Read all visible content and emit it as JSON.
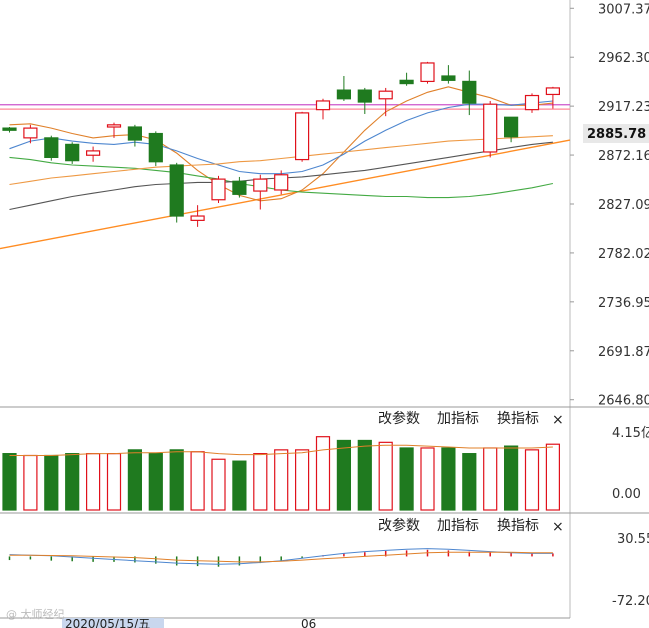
{
  "chart_data": {
    "type": "candlestick",
    "y_ticks": [
      "3007.37",
      "2962.30",
      "2917.23",
      "2872.16",
      "2827.09",
      "2782.02",
      "2736.95",
      "2691.87",
      "2646.80"
    ],
    "y_tick_values": [
      3007.37,
      2962.3,
      2917.23,
      2872.16,
      2827.09,
      2782.02,
      2736.95,
      2691.87,
      2646.8
    ],
    "ylim": [
      2641,
      3015
    ],
    "last_price": "2885.78",
    "last_price_value": 2885.78,
    "candles": [
      {
        "o": 2897,
        "c": 2895,
        "h": 2898,
        "l": 2893
      },
      {
        "o": 2888,
        "c": 2897,
        "h": 2900,
        "l": 2883
      },
      {
        "o": 2888,
        "c": 2870,
        "h": 2890,
        "l": 2867
      },
      {
        "o": 2882,
        "c": 2867,
        "h": 2884,
        "l": 2864
      },
      {
        "o": 2872,
        "c": 2876,
        "h": 2880,
        "l": 2866
      },
      {
        "o": 2898,
        "c": 2900,
        "h": 2902,
        "l": 2888
      },
      {
        "o": 2898,
        "c": 2886,
        "h": 2900,
        "l": 2880
      },
      {
        "o": 2892,
        "c": 2866,
        "h": 2894,
        "l": 2862
      },
      {
        "o": 2863,
        "c": 2816,
        "h": 2865,
        "l": 2810
      },
      {
        "o": 2812,
        "c": 2816,
        "h": 2826,
        "l": 2806
      },
      {
        "o": 2831,
        "c": 2850,
        "h": 2853,
        "l": 2828
      },
      {
        "o": 2848,
        "c": 2836,
        "h": 2852,
        "l": 2833
      },
      {
        "o": 2839,
        "c": 2850,
        "h": 2854,
        "l": 2822
      },
      {
        "o": 2840,
        "c": 2854,
        "h": 2858,
        "l": 2836
      },
      {
        "o": 2868,
        "c": 2911,
        "h": 2912,
        "l": 2866
      },
      {
        "o": 2914,
        "c": 2922,
        "h": 2924,
        "l": 2905
      },
      {
        "o": 2932,
        "c": 2924,
        "h": 2945,
        "l": 2922
      },
      {
        "o": 2932,
        "c": 2921,
        "h": 2934,
        "l": 2910
      },
      {
        "o": 2924,
        "c": 2931,
        "h": 2934,
        "l": 2908
      },
      {
        "o": 2941,
        "c": 2938,
        "h": 2948,
        "l": 2936
      },
      {
        "o": 2940,
        "c": 2957,
        "h": 2958,
        "l": 2938
      },
      {
        "o": 2945,
        "c": 2941,
        "h": 2955,
        "l": 2938
      },
      {
        "o": 2940,
        "c": 2920,
        "h": 2950,
        "l": 2909
      },
      {
        "o": 2875,
        "c": 2919,
        "h": 2922,
        "l": 2870
      },
      {
        "o": 2907,
        "c": 2889,
        "h": 2907,
        "l": 2884
      },
      {
        "o": 2914,
        "c": 2927,
        "h": 2929,
        "l": 2911
      },
      {
        "o": 2928,
        "c": 2934,
        "h": 2935,
        "l": 2915
      }
    ],
    "ma_lines": [
      {
        "color": "#e0802a",
        "values": [
          2900,
          2901,
          2897,
          2892,
          2888,
          2890,
          2891,
          2886,
          2874,
          2858,
          2845,
          2835,
          2830,
          2832,
          2840,
          2855,
          2875,
          2895,
          2912,
          2922,
          2930,
          2935,
          2930,
          2925,
          2918,
          2918,
          2920
        ]
      },
      {
        "color": "#4d86cf",
        "values": [
          2878,
          2885,
          2888,
          2885,
          2883,
          2882,
          2884,
          2882,
          2876,
          2869,
          2863,
          2857,
          2855,
          2855,
          2857,
          2863,
          2873,
          2885,
          2895,
          2904,
          2911,
          2916,
          2919,
          2919,
          2918,
          2920,
          2922
        ]
      },
      {
        "color": "#44aa44",
        "values": [
          2870,
          2868,
          2865,
          2863,
          2862,
          2861,
          2860,
          2858,
          2856,
          2853,
          2850,
          2846,
          2843,
          2840,
          2838,
          2837,
          2836,
          2835,
          2834,
          2834,
          2833,
          2833,
          2834,
          2836,
          2839,
          2842,
          2846
        ]
      },
      {
        "color": "#555555",
        "values": [
          2822,
          2826,
          2830,
          2834,
          2837,
          2840,
          2843,
          2845,
          2846,
          2847,
          2847,
          2848,
          2850,
          2851,
          2852,
          2854,
          2856,
          2858,
          2861,
          2864,
          2867,
          2870,
          2873,
          2876,
          2879,
          2882,
          2884
        ]
      },
      {
        "color": "#ee9944",
        "values": [
          2845,
          2848,
          2851,
          2853,
          2855,
          2857,
          2859,
          2861,
          2862,
          2863,
          2864,
          2866,
          2867,
          2869,
          2871,
          2873,
          2875,
          2877,
          2879,
          2881,
          2883,
          2885,
          2886,
          2887,
          2888,
          2889,
          2890
        ]
      }
    ],
    "hlines": [
      {
        "color": "#cc55cc",
        "value": 2918.5
      },
      {
        "color": "#ff8899",
        "value": 2914.5
      }
    ],
    "trendline": {
      "color": "#ff8c22",
      "from": 2786,
      "to": 2886
    },
    "volume": {
      "y_ticks": [
        "4.15亿",
        "0.00"
      ],
      "bars": [
        3.0,
        2.9,
        2.9,
        3.0,
        3.0,
        3.0,
        3.2,
        3.0,
        3.2,
        3.1,
        2.7,
        2.6,
        3.0,
        3.2,
        3.2,
        3.9,
        3.7,
        3.7,
        3.6,
        3.3,
        3.3,
        3.3,
        3.0,
        3.3,
        3.4,
        3.2,
        3.5
      ],
      "ma": [
        2.9,
        2.9,
        2.9,
        2.95,
        3.0,
        3.0,
        3.05,
        3.05,
        3.1,
        3.1,
        3.0,
        2.95,
        2.95,
        3.0,
        3.05,
        3.2,
        3.3,
        3.4,
        3.45,
        3.45,
        3.4,
        3.35,
        3.3,
        3.3,
        3.3,
        3.3,
        3.35
      ]
    },
    "macd": {
      "y_ticks": [
        "30.55",
        "-72.20"
      ],
      "hist": [
        -6,
        -5,
        -7,
        -8,
        -9,
        -9,
        -10,
        -12,
        -15,
        -16,
        -17,
        -15,
        -11,
        -7,
        -3,
        2,
        5,
        7,
        9,
        10,
        11,
        10,
        8,
        7,
        6,
        5,
        5
      ],
      "dif": [
        3,
        2,
        1,
        -1,
        -3,
        -5,
        -7,
        -9,
        -11,
        -12,
        -13,
        -12,
        -10,
        -7,
        -3,
        1,
        5,
        8,
        10,
        12,
        13,
        12,
        10,
        8,
        6,
        5,
        5
      ],
      "dea": [
        2,
        2,
        1.5,
        1,
        0,
        -1,
        -2,
        -4,
        -6,
        -7,
        -8,
        -9,
        -9,
        -8,
        -6,
        -4,
        -2,
        0,
        2,
        4,
        6,
        7,
        7,
        7,
        7,
        6,
        6
      ]
    },
    "date_label": "2020/05/15/五",
    "month_label": "06"
  },
  "panels": {
    "btn_params": "改参数",
    "btn_add": "加指标",
    "btn_switch": "换指标",
    "btn_close": "×"
  },
  "watermark": "@ 大师经纪",
  "colors": {
    "up": "#e0111b",
    "down": "#1f7a1f"
  }
}
